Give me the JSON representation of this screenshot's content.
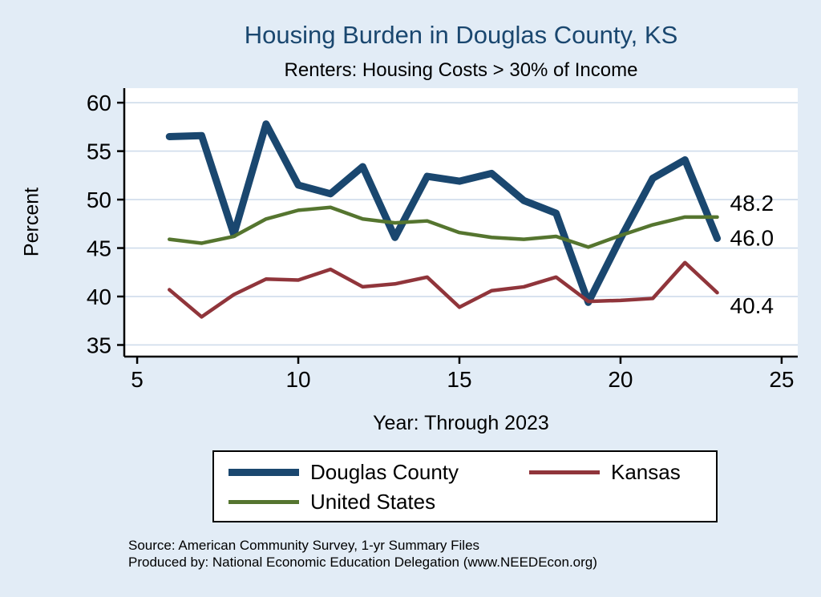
{
  "header": {
    "title": "Housing Burden in Douglas County, KS",
    "subtitle": "Renters: Housing Costs > 30% of Income"
  },
  "chart_data": {
    "type": "line",
    "title": "Housing Burden in Douglas County, KS",
    "subtitle": "Renters: Housing Costs > 30% of Income",
    "xlabel": "Year: Through 2023",
    "ylabel": "Percent",
    "x": [
      6,
      7,
      8,
      9,
      10,
      11,
      12,
      13,
      14,
      15,
      16,
      17,
      18,
      19,
      20,
      21,
      22,
      23
    ],
    "series": [
      {
        "name": "Douglas County",
        "color": "#1a476f",
        "width": 9,
        "values": [
          56.5,
          56.6,
          46.4,
          57.8,
          51.5,
          50.6,
          53.4,
          46.1,
          52.4,
          51.9,
          52.7,
          49.9,
          48.6,
          39.4,
          46.0,
          52.2,
          54.1,
          46.0
        ]
      },
      {
        "name": "Kansas",
        "color": "#90353b",
        "width": 4.5,
        "values": [
          40.7,
          37.9,
          40.2,
          41.8,
          41.7,
          42.8,
          41.0,
          41.3,
          42.0,
          38.9,
          40.6,
          41.0,
          42.0,
          39.5,
          39.6,
          39.8,
          43.5,
          40.4
        ]
      },
      {
        "name": "United States",
        "color": "#55752f",
        "width": 4.5,
        "values": [
          45.9,
          45.5,
          46.2,
          48.0,
          48.9,
          49.2,
          48.0,
          47.6,
          47.8,
          46.6,
          46.1,
          45.9,
          46.2,
          45.1,
          46.3,
          47.4,
          48.2,
          48.2
        ]
      }
    ],
    "xticks": [
      5,
      10,
      15,
      20,
      25
    ],
    "yticks": [
      35,
      40,
      45,
      50,
      55,
      60
    ],
    "xlim": [
      4.6,
      25.5
    ],
    "ylim": [
      33.8,
      61.5
    ],
    "grid": true,
    "grid_color": "#cfdceb",
    "legend_position": "bottom",
    "end_labels": [
      {
        "series": "United States",
        "text": "48.2"
      },
      {
        "series": "Douglas County",
        "text": "46.0"
      },
      {
        "series": "Kansas",
        "text": "40.4"
      }
    ]
  },
  "legend": {
    "items": [
      {
        "label": "Douglas County",
        "color": "#1a476f",
        "thickness": 9
      },
      {
        "label": "Kansas",
        "color": "#90353b",
        "thickness": 5
      },
      {
        "label": "United States",
        "color": "#55752f",
        "thickness": 5
      }
    ]
  },
  "notes": {
    "source": "Source: American Community Survey, 1-yr Summary Files",
    "produced_by": "Produced by: National Economic Education Delegation (www.NEEDEcon.org)"
  },
  "colors": {
    "background": "#e2ecf6",
    "title": "#1a476f",
    "axis": "#000000",
    "plot_bg": "#ffffff"
  }
}
